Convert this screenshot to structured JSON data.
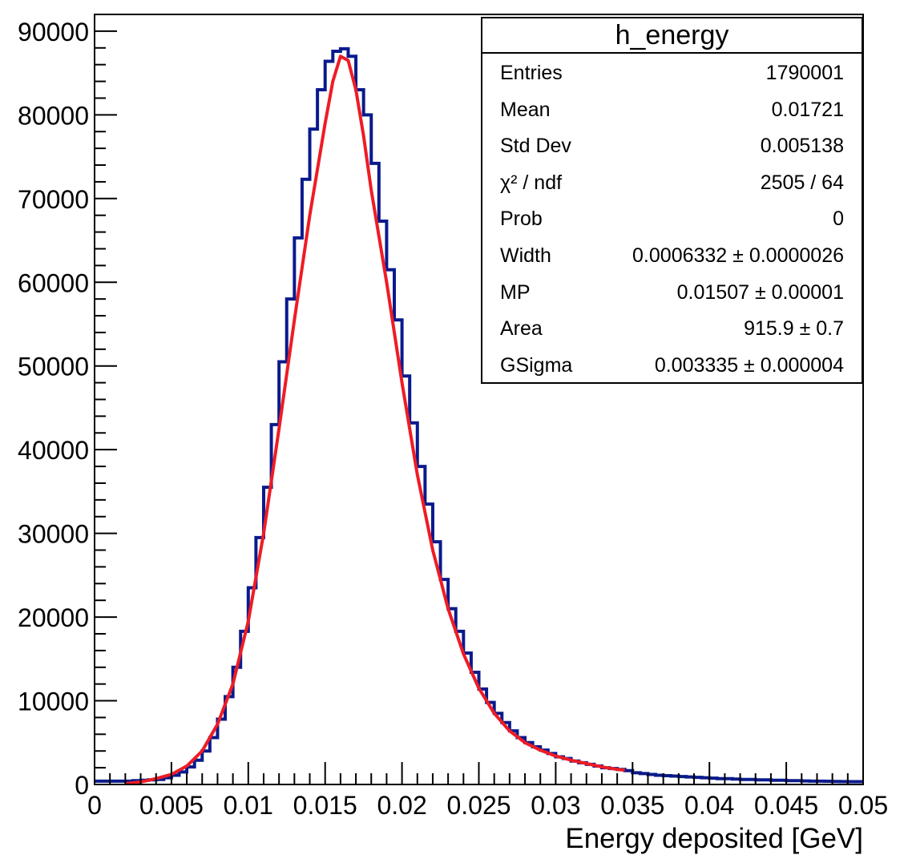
{
  "stats": {
    "title": "h_energy",
    "rows": [
      {
        "label": "Entries",
        "value": "1790001"
      },
      {
        "label": "Mean",
        "value": "0.01721"
      },
      {
        "label": "Std Dev",
        "value": "0.005138"
      },
      {
        "label": "χ² / ndf",
        "value": "2505 / 64"
      },
      {
        "label": "Prob",
        "value": "0"
      },
      {
        "label": "Width",
        "value": "0.0006332 ± 0.0000026"
      },
      {
        "label": "MP",
        "value": "0.01507 ± 0.00001"
      },
      {
        "label": "Area",
        "value": "915.9 ± 0.7"
      },
      {
        "label": "GSigma",
        "value": "0.003335 ± 0.000004"
      }
    ]
  },
  "colors": {
    "histogram": "#0a1a8c",
    "fit": "#ee1c25",
    "axis": "#000000"
  },
  "chart_data": {
    "type": "histogram",
    "title": "",
    "xlabel": "Energy deposited [GeV]",
    "ylabel": "",
    "xlim": [
      0,
      0.05
    ],
    "ylim": [
      0,
      92000
    ],
    "grid": false,
    "legend": "top-right",
    "x_ticks": [
      "0",
      "0.005",
      "0.01",
      "0.015",
      "0.02",
      "0.025",
      "0.03",
      "0.035",
      "0.04",
      "0.045",
      "0.05"
    ],
    "y_ticks": [
      "0",
      "10000",
      "20000",
      "30000",
      "40000",
      "50000",
      "60000",
      "70000",
      "80000",
      "90000"
    ],
    "bin_width": 0.0005,
    "series": [
      {
        "kind": "histogram",
        "bin_low_edges": [
          0,
          0.0005,
          0.001,
          0.0015,
          0.002,
          0.0025,
          0.003,
          0.0035,
          0.004,
          0.0045,
          0.005,
          0.0055,
          0.006,
          0.0065,
          0.007,
          0.0075,
          0.008,
          0.0085,
          0.009,
          0.0095,
          0.01,
          0.0105,
          0.011,
          0.0115,
          0.012,
          0.0125,
          0.013,
          0.0135,
          0.014,
          0.0145,
          0.015,
          0.0155,
          0.016,
          0.0165,
          0.017,
          0.0175,
          0.018,
          0.0185,
          0.019,
          0.0195,
          0.02,
          0.0205,
          0.021,
          0.0215,
          0.022,
          0.0225,
          0.023,
          0.0235,
          0.024,
          0.0245,
          0.025,
          0.0255,
          0.026,
          0.0265,
          0.027,
          0.0275,
          0.028,
          0.0285,
          0.029,
          0.0295,
          0.03,
          0.0305,
          0.031,
          0.0315,
          0.032,
          0.0325,
          0.033,
          0.0335,
          0.034,
          0.0345,
          0.035,
          0.0355,
          0.036,
          0.0365,
          0.037,
          0.0375,
          0.038,
          0.0385,
          0.039,
          0.0395,
          0.04,
          0.0405,
          0.041,
          0.0415,
          0.042,
          0.0425,
          0.043,
          0.0435,
          0.044,
          0.0445,
          0.045,
          0.0455,
          0.046,
          0.0465,
          0.047,
          0.0475,
          0.048,
          0.0485,
          0.049,
          0.0495
        ],
        "values": [
          400,
          400,
          400,
          400,
          400,
          450,
          500,
          550,
          600,
          800,
          1100,
          1500,
          2100,
          2900,
          4000,
          5600,
          7800,
          10500,
          14000,
          18300,
          23500,
          29500,
          35500,
          43000,
          50500,
          58000,
          65300,
          72300,
          78300,
          83000,
          86400,
          87600,
          87900,
          87000,
          83000,
          80000,
          74200,
          67300,
          61500,
          55500,
          48800,
          43200,
          38000,
          33500,
          29000,
          24500,
          21000,
          18300,
          15700,
          13400,
          11400,
          9800,
          8500,
          7400,
          6400,
          5600,
          5000,
          4500,
          4100,
          3700,
          3300,
          3100,
          2800,
          2600,
          2400,
          2200,
          2000,
          1900,
          1800,
          1650,
          1400,
          1300,
          1200,
          1100,
          1050,
          1000,
          950,
          900,
          850,
          800,
          750,
          700,
          700,
          650,
          600,
          600,
          550,
          550,
          500,
          500,
          450,
          450,
          420,
          400,
          400,
          380,
          360,
          350,
          340,
          330
        ]
      },
      {
        "kind": "fit",
        "x": [
          0.002,
          0.003,
          0.004,
          0.005,
          0.006,
          0.007,
          0.008,
          0.009,
          0.01,
          0.011,
          0.012,
          0.013,
          0.014,
          0.015,
          0.0155,
          0.016,
          0.0165,
          0.017,
          0.0175,
          0.018,
          0.019,
          0.02,
          0.021,
          0.022,
          0.023,
          0.024,
          0.025,
          0.026,
          0.027,
          0.028,
          0.029,
          0.03,
          0.031,
          0.032,
          0.033,
          0.034,
          0.0345
        ],
        "y": [
          100,
          300,
          700,
          1200,
          2200,
          4000,
          7200,
          12000,
          19500,
          30000,
          42500,
          55500,
          68000,
          79000,
          84000,
          87000,
          86500,
          83000,
          77500,
          71000,
          60000,
          48000,
          37000,
          28000,
          21000,
          15600,
          11500,
          8500,
          6400,
          5000,
          4100,
          3400,
          2900,
          2500,
          2100,
          1800,
          1700
        ]
      }
    ]
  }
}
